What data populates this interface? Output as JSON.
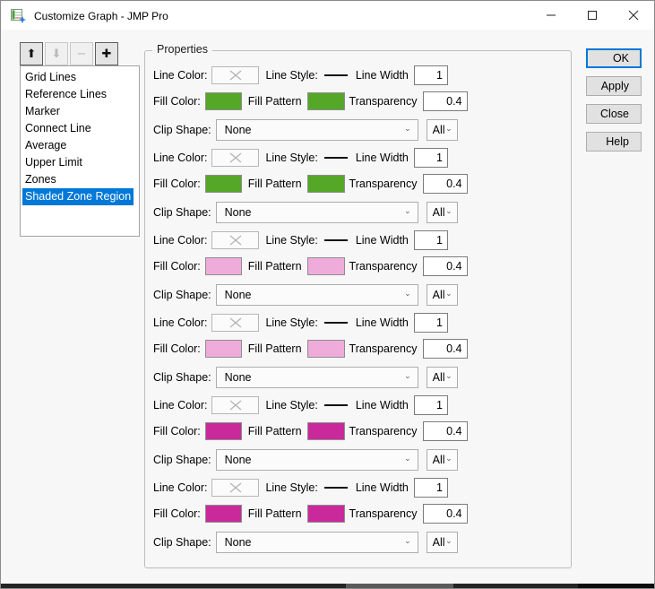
{
  "window": {
    "title": "Customize Graph - JMP Pro",
    "controls": [
      {
        "name": "minimize"
      },
      {
        "name": "maximize"
      },
      {
        "name": "close"
      }
    ]
  },
  "toolbar": {
    "buttons": [
      {
        "name": "move-up",
        "glyph": "⬆",
        "enabled": true
      },
      {
        "name": "move-down",
        "glyph": "⬇",
        "enabled": false
      },
      {
        "name": "remove",
        "glyph": "−",
        "enabled": false
      },
      {
        "name": "add",
        "glyph": "✚",
        "enabled": true
      }
    ]
  },
  "list": {
    "items": [
      {
        "label": "Grid Lines",
        "selected": false
      },
      {
        "label": "Reference Lines",
        "selected": false
      },
      {
        "label": "Marker",
        "selected": false
      },
      {
        "label": "Connect Line",
        "selected": false
      },
      {
        "label": "Average",
        "selected": false
      },
      {
        "label": "Upper Limit",
        "selected": false
      },
      {
        "label": "Zones",
        "selected": false
      },
      {
        "label": "Shaded Zone Region",
        "selected": true
      }
    ]
  },
  "properties": {
    "legend": "Properties",
    "labels": {
      "line_color": "Line Color:",
      "line_style": "Line Style:",
      "line_width": "Line Width",
      "fill_color": "Fill Color:",
      "fill_pattern": "Fill Pattern",
      "transparency": "Transparency",
      "clip_shape": "Clip Shape:"
    },
    "sections": [
      {
        "line_width": "1",
        "line_style": "solid",
        "fill_color": "#54A727",
        "fill_pattern_color": "#54A727",
        "transparency": "0.4",
        "clip_shape": "None",
        "clip_scope": "All"
      },
      {
        "line_width": "1",
        "line_style": "solid",
        "fill_color": "#54A727",
        "fill_pattern_color": "#54A727",
        "transparency": "0.4",
        "clip_shape": "None",
        "clip_scope": "All"
      },
      {
        "line_width": "1",
        "line_style": "solid",
        "fill_color": "#EFABDA",
        "fill_pattern_color": "#EFABDA",
        "transparency": "0.4",
        "clip_shape": "None",
        "clip_scope": "All"
      },
      {
        "line_width": "1",
        "line_style": "solid",
        "fill_color": "#EFABDA",
        "fill_pattern_color": "#EFABDA",
        "transparency": "0.4",
        "clip_shape": "None",
        "clip_scope": "All"
      },
      {
        "line_width": "1",
        "line_style": "solid",
        "fill_color": "#C9299B",
        "fill_pattern_color": "#C9299B",
        "transparency": "0.4",
        "clip_shape": "None",
        "clip_scope": "All"
      },
      {
        "line_width": "1",
        "line_style": "solid",
        "fill_color": "#C9299B",
        "fill_pattern_color": "#C9299B",
        "transparency": "0.4",
        "clip_shape": "None",
        "clip_scope": "All"
      }
    ]
  },
  "actions": {
    "buttons": [
      {
        "label": "OK",
        "default": true
      },
      {
        "label": "Apply",
        "default": false
      },
      {
        "label": "Close",
        "default": false
      },
      {
        "label": "Help",
        "default": false
      }
    ]
  },
  "colors": {
    "selection": "#0078D7",
    "green": "#54A727",
    "pink": "#EFABDA",
    "magenta": "#C9299B",
    "dialog_background": "#f7f7f7"
  }
}
